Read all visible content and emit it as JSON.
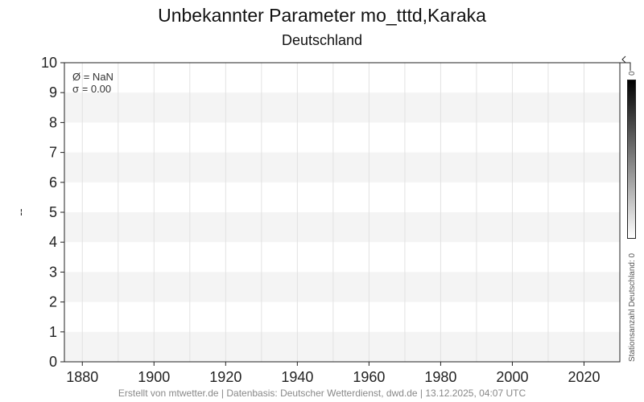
{
  "chart_data": {
    "type": "line",
    "title": "Unbekannter Parameter mo_tttd,Karaka",
    "subtitle": "Deutschland",
    "xlabel": "",
    "ylabel": "--",
    "xlim": [
      1875,
      2030
    ],
    "ylim": [
      0,
      10
    ],
    "xticks": [
      1880,
      1900,
      1920,
      1940,
      1960,
      1980,
      2000,
      2020
    ],
    "yticks": [
      0,
      1,
      2,
      3,
      4,
      5,
      6,
      7,
      8,
      9,
      10
    ],
    "grid": true,
    "series": [],
    "stats": [
      "Ø = NaN",
      "σ = 0.00"
    ],
    "colorbar": {
      "label": "Stationsanzahl Deutschland: 0",
      "max_label": "0",
      "colors": [
        "#ffffff",
        "#000000"
      ]
    }
  },
  "footer": "Erstellt von mtwetter.de | Datenbasis: Deutscher Wetterdienst, dwd.de | 13.12.2025, 04:07 UTC"
}
